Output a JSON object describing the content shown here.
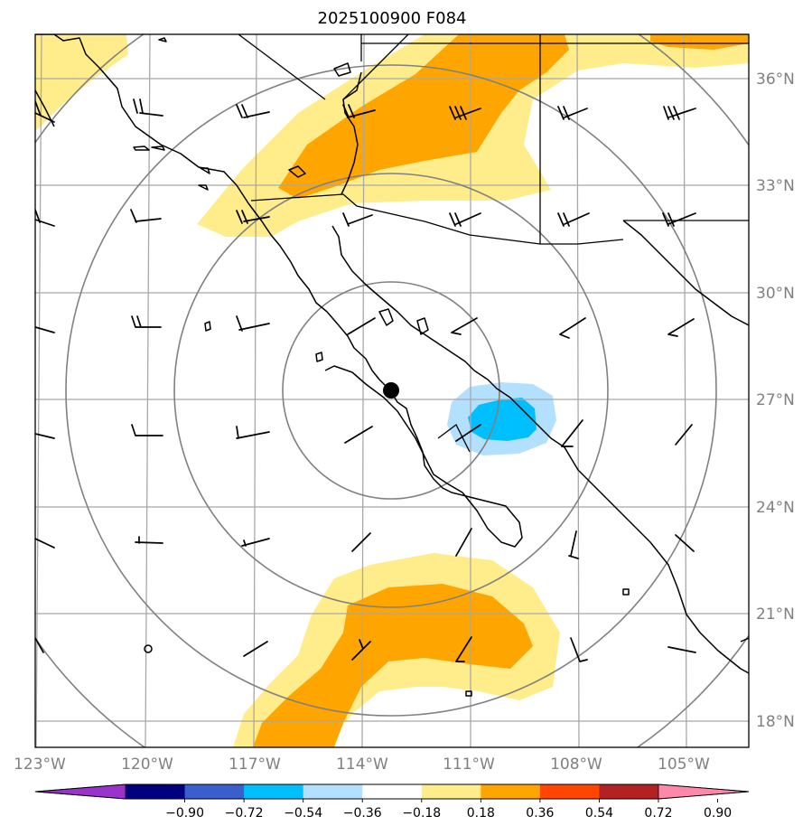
{
  "title": "2025100900 F084",
  "lon_labels": [
    "123°W",
    "120°W",
    "117°W",
    "114°W",
    "111°W",
    "108°W",
    "105°W"
  ],
  "lat_labels": [
    "36°N",
    "33°N",
    "30°N",
    "27°N",
    "24°N",
    "21°N",
    "18°N"
  ],
  "colorbar": {
    "ticks": [
      "−0.90",
      "−0.72",
      "−0.54",
      "−0.36",
      "−0.18",
      "0.18",
      "0.36",
      "0.54",
      "0.72",
      "0.90"
    ],
    "colors": [
      "#9933cc",
      "#000080",
      "#3a5fcd",
      "#00bfff",
      "#b3e0ff",
      "#ffffff",
      "#ffec8b",
      "#ffa500",
      "#ff4500",
      "#b22222",
      "#ff88aa"
    ]
  },
  "colors": {
    "light_yellow": "#ffec8b",
    "orange": "#ffa500",
    "light_blue": "#b3e0ff",
    "deep_sky_blue": "#00bfff",
    "grid": "#a8a8a8",
    "ring": "#808080"
  },
  "center_marker": "storm-center-dot"
}
